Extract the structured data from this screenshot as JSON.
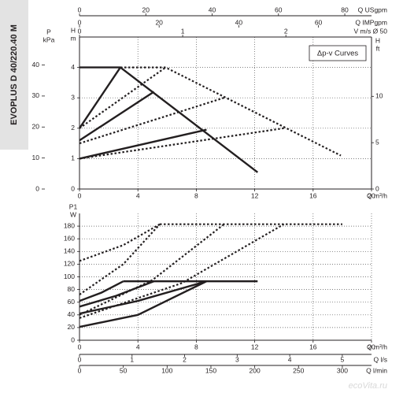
{
  "sidebar_title": "EVOPLUS D 40/220.40 M",
  "watermark": "ecoVita.ru",
  "chart_data": [
    {
      "type": "line",
      "annotation": "Δp-v Curves",
      "xlabel": "Q m³/h",
      "xlim": [
        0,
        20
      ],
      "xticks": [
        0,
        4,
        8,
        12,
        16,
        20
      ],
      "ylabel": [
        "H",
        "m"
      ],
      "ylim": [
        0,
        5
      ],
      "yticks": [
        0,
        1,
        2,
        3,
        4
      ],
      "grid": true,
      "axes": [
        {
          "position": "left",
          "label": [
            "P",
            "kPa"
          ],
          "lim": [
            0,
            49.03
          ],
          "ticks": [
            0,
            10,
            20,
            30,
            40
          ]
        },
        {
          "position": "right",
          "label": [
            "H",
            "ft"
          ],
          "lim": [
            0,
            16.4
          ],
          "ticks": [
            0,
            5,
            10
          ]
        },
        {
          "position": "top",
          "label": "Q USgpm",
          "lim": [
            0,
            88.06
          ],
          "ticks": [
            0,
            20,
            40,
            60,
            80
          ]
        },
        {
          "position": "top",
          "label": "Q IMPgpm",
          "lim": [
            0,
            73.33
          ],
          "ticks": [
            0,
            20,
            40,
            60
          ]
        },
        {
          "position": "top",
          "label": "V m/s Ø 50",
          "lim": [
            0,
            2.83
          ],
          "ticks": [
            0,
            1,
            2
          ]
        }
      ],
      "series": [
        {
          "style": "solid",
          "color": "#231f20",
          "x": [
            0,
            2.8,
            12.2
          ],
          "values": [
            4,
            4,
            0.55
          ]
        },
        {
          "style": "solid",
          "color": "#231f20",
          "x": [
            0,
            2.8
          ],
          "values": [
            2,
            4
          ]
        },
        {
          "style": "solid",
          "color": "#231f20",
          "x": [
            0,
            5.1
          ],
          "values": [
            1.6,
            3.2
          ]
        },
        {
          "style": "solid",
          "color": "#231f20",
          "x": [
            0,
            8.7
          ],
          "values": [
            1,
            1.95
          ]
        },
        {
          "style": "dashed",
          "color": "#231f20",
          "x": [
            2.8,
            5.9,
            17.9
          ],
          "values": [
            4,
            4,
            1.1
          ]
        },
        {
          "style": "dashed",
          "color": "#231f20",
          "x": [
            0,
            5.9
          ],
          "values": [
            2,
            4
          ]
        },
        {
          "style": "dashed",
          "color": "#231f20",
          "x": [
            0,
            9.9
          ],
          "values": [
            1.5,
            3
          ]
        },
        {
          "style": "dashed",
          "color": "#231f20",
          "x": [
            0,
            14
          ],
          "values": [
            1,
            2
          ]
        }
      ]
    },
    {
      "type": "line",
      "xlabel": "Q m³/h",
      "xlim": [
        0,
        20
      ],
      "xticks": [
        0,
        4,
        8,
        12,
        16,
        20
      ],
      "ylabel": [
        "P1",
        "W"
      ],
      "ylim": [
        0,
        200
      ],
      "yticks": [
        0,
        20,
        40,
        60,
        80,
        100,
        120,
        140,
        160,
        180
      ],
      "grid": true,
      "axes": [
        {
          "position": "bottom",
          "label": "Q l/s",
          "lim": [
            0,
            5.556
          ],
          "ticks": [
            0,
            1,
            2,
            3,
            4,
            5
          ]
        },
        {
          "position": "bottom",
          "label": "Q l/min",
          "lim": [
            0,
            333.3
          ],
          "ticks": [
            0,
            50,
            100,
            150,
            200,
            250,
            300
          ]
        }
      ],
      "series": [
        {
          "style": "solid",
          "color": "#231f20",
          "x": [
            3,
            12.2
          ],
          "values": [
            93,
            93
          ]
        },
        {
          "style": "solid",
          "color": "#231f20",
          "x": [
            0,
            1.5,
            3
          ],
          "values": [
            62,
            75,
            93
          ]
        },
        {
          "style": "solid",
          "color": "#231f20",
          "x": [
            0,
            2.5,
            5.1
          ],
          "values": [
            53,
            70,
            93
          ]
        },
        {
          "style": "solid",
          "color": "#231f20",
          "x": [
            0,
            4,
            8.7
          ],
          "values": [
            42,
            62,
            93
          ]
        },
        {
          "style": "solid",
          "color": "#231f20",
          "x": [
            0,
            4,
            8.7
          ],
          "values": [
            21,
            40,
            93
          ]
        },
        {
          "style": "dashed",
          "color": "#231f20",
          "x": [
            5.5,
            18
          ],
          "values": [
            183,
            183
          ]
        },
        {
          "style": "dashed",
          "color": "#231f20",
          "x": [
            0,
            3,
            5.5
          ],
          "values": [
            125,
            150,
            183
          ]
        },
        {
          "style": "dashed",
          "color": "#231f20",
          "x": [
            0,
            3,
            5.5
          ],
          "values": [
            72,
            120,
            183
          ]
        },
        {
          "style": "dashed",
          "color": "#231f20",
          "x": [
            0,
            5,
            9.9
          ],
          "values": [
            40,
            95,
            183
          ]
        },
        {
          "style": "dashed",
          "color": "#231f20",
          "x": [
            0,
            7,
            14
          ],
          "values": [
            35,
            90,
            183
          ]
        }
      ]
    }
  ]
}
